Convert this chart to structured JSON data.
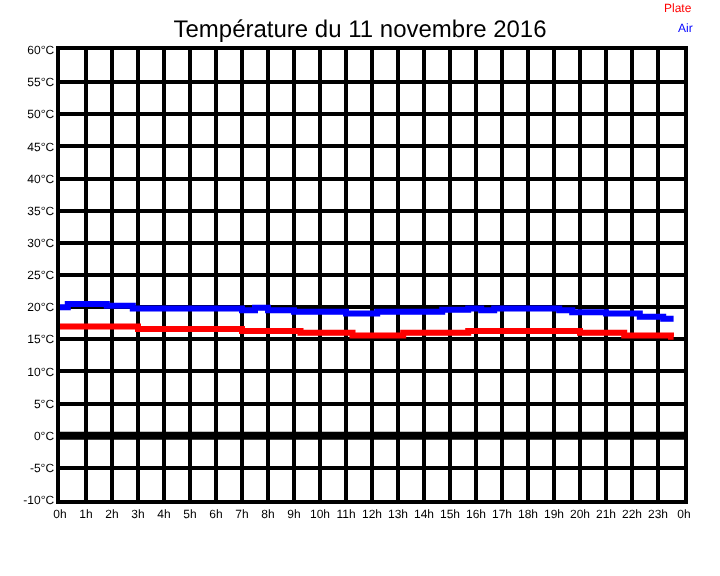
{
  "chart_data": {
    "type": "step",
    "title": "Température du 11 novembre 2016",
    "xlim": [
      "2016-11-11T00:00",
      "2016-11-12T00:00"
    ],
    "xticks": [
      {
        "value": "2016-11-11T00:00",
        "label": "0h"
      },
      {
        "value": "2016-11-11T01:00",
        "label": "1h"
      },
      {
        "value": "2016-11-11T02:00",
        "label": "2h"
      },
      {
        "value": "2016-11-11T03:00",
        "label": "3h"
      },
      {
        "value": "2016-11-11T04:00",
        "label": "4h"
      },
      {
        "value": "2016-11-11T05:00",
        "label": "5h"
      },
      {
        "value": "2016-11-11T06:00",
        "label": "6h"
      },
      {
        "value": "2016-11-11T07:00",
        "label": "7h"
      },
      {
        "value": "2016-11-11T08:00",
        "label": "8h"
      },
      {
        "value": "2016-11-11T09:00",
        "label": "9h"
      },
      {
        "value": "2016-11-11T10:00",
        "label": "10h"
      },
      {
        "value": "2016-11-11T11:00",
        "label": "11h"
      },
      {
        "value": "2016-11-11T12:00",
        "label": "12h"
      },
      {
        "value": "2016-11-11T13:00",
        "label": "13h"
      },
      {
        "value": "2016-11-11T14:00",
        "label": "14h"
      },
      {
        "value": "2016-11-11T15:00",
        "label": "15h"
      },
      {
        "value": "2016-11-11T16:00",
        "label": "16h"
      },
      {
        "value": "2016-11-11T17:00",
        "label": "17h"
      },
      {
        "value": "2016-11-11T18:00",
        "label": "18h"
      },
      {
        "value": "2016-11-11T19:00",
        "label": "19h"
      },
      {
        "value": "2016-11-11T20:00",
        "label": "20h"
      },
      {
        "value": "2016-11-11T21:00",
        "label": "21h"
      },
      {
        "value": "2016-11-11T22:00",
        "label": "22h"
      },
      {
        "value": "2016-11-11T23:00",
        "label": "23h"
      },
      {
        "value": "2016-11-12T00:00",
        "label": "0h"
      }
    ],
    "ylim": [
      -10,
      60
    ],
    "yticks": [
      {
        "value": -10,
        "label": "-10°C"
      },
      {
        "value": -5,
        "label": "-5°C"
      },
      {
        "value": 0,
        "label": "0°C"
      },
      {
        "value": 5,
        "label": "5°C"
      },
      {
        "value": 10,
        "label": "10°C"
      },
      {
        "value": 15,
        "label": "15°C"
      },
      {
        "value": 20,
        "label": "20°C"
      },
      {
        "value": 25,
        "label": "25°C"
      },
      {
        "value": 30,
        "label": "30°C"
      },
      {
        "value": 35,
        "label": "35°C"
      },
      {
        "value": 40,
        "label": "40°C"
      },
      {
        "value": 45,
        "label": "45°C"
      },
      {
        "value": 50,
        "label": "50°C"
      },
      {
        "value": 55,
        "label": "55°C"
      },
      {
        "value": 60,
        "label": "60°C"
      }
    ],
    "grid": true,
    "ref_lines": [
      {
        "axis": "y",
        "value": 0,
        "color": "#000000"
      }
    ],
    "series": [
      {
        "name": "Plate",
        "color": "#ff0000",
        "x": [
          "2016-11-11T00:00",
          "2016-11-11T03:00",
          "2016-11-11T07:00",
          "2016-11-11T09:15",
          "2016-11-11T11:15",
          "2016-11-11T13:12",
          "2016-11-11T15:42",
          "2016-11-11T20:00",
          "2016-11-11T21:42",
          "2016-11-11T23:30",
          "2016-11-11T23:36"
        ],
        "values": [
          17.0,
          16.6,
          16.3,
          16.0,
          15.6,
          16.0,
          16.3,
          16.0,
          15.6,
          15.4,
          15.4
        ]
      },
      {
        "name": "Air",
        "color": "#0000ff",
        "x": [
          "2016-11-11T00:00",
          "2016-11-11T00:18",
          "2016-11-11T01:48",
          "2016-11-11T02:48",
          "2016-11-11T07:00",
          "2016-11-11T07:30",
          "2016-11-11T08:00",
          "2016-11-11T09:00",
          "2016-11-11T11:00",
          "2016-11-11T12:12",
          "2016-11-11T14:42",
          "2016-11-11T15:42",
          "2016-11-11T16:12",
          "2016-11-11T16:42",
          "2016-11-11T19:12",
          "2016-11-11T19:42",
          "2016-11-11T21:00",
          "2016-11-11T22:18",
          "2016-11-11T23:12",
          "2016-11-11T23:36"
        ],
        "values": [
          20.0,
          20.5,
          20.2,
          19.8,
          19.5,
          19.9,
          19.5,
          19.3,
          19.0,
          19.3,
          19.6,
          19.8,
          19.5,
          19.8,
          19.5,
          19.2,
          19.0,
          18.5,
          18.2,
          18.2
        ]
      }
    ]
  }
}
